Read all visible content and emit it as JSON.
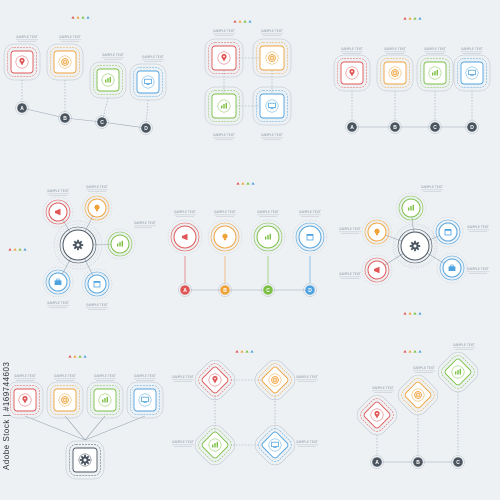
{
  "colors": {
    "red": "#e05656",
    "orange": "#f0a23a",
    "green": "#7bc043",
    "blue": "#4fa3e0",
    "gray": "#7d8894",
    "dark": "#4a5560",
    "line": "#9aa6b2"
  },
  "markers": [
    "A",
    "B",
    "C",
    "D"
  ],
  "placeholder_text": "SAMPLE TEXT",
  "icons": [
    "map-pin-icon",
    "target-icon",
    "chart-icon",
    "monitor-icon",
    "megaphone-icon",
    "lightbulb-icon",
    "briefcase-icon",
    "calendar-icon",
    "gear-icon"
  ],
  "watermark": "Adobe Stock | #169744603",
  "panels": [
    {
      "layout": "chain-squares-lettered"
    },
    {
      "layout": "grid-2x2-squares"
    },
    {
      "layout": "row-squares-lettered"
    },
    {
      "layout": "hub-circles-5"
    },
    {
      "layout": "row-circles-lettered"
    },
    {
      "layout": "hub-circles-4"
    },
    {
      "layout": "squares-to-hub"
    },
    {
      "layout": "diamonds-2x2"
    },
    {
      "layout": "diamond-chain-lettered"
    }
  ]
}
